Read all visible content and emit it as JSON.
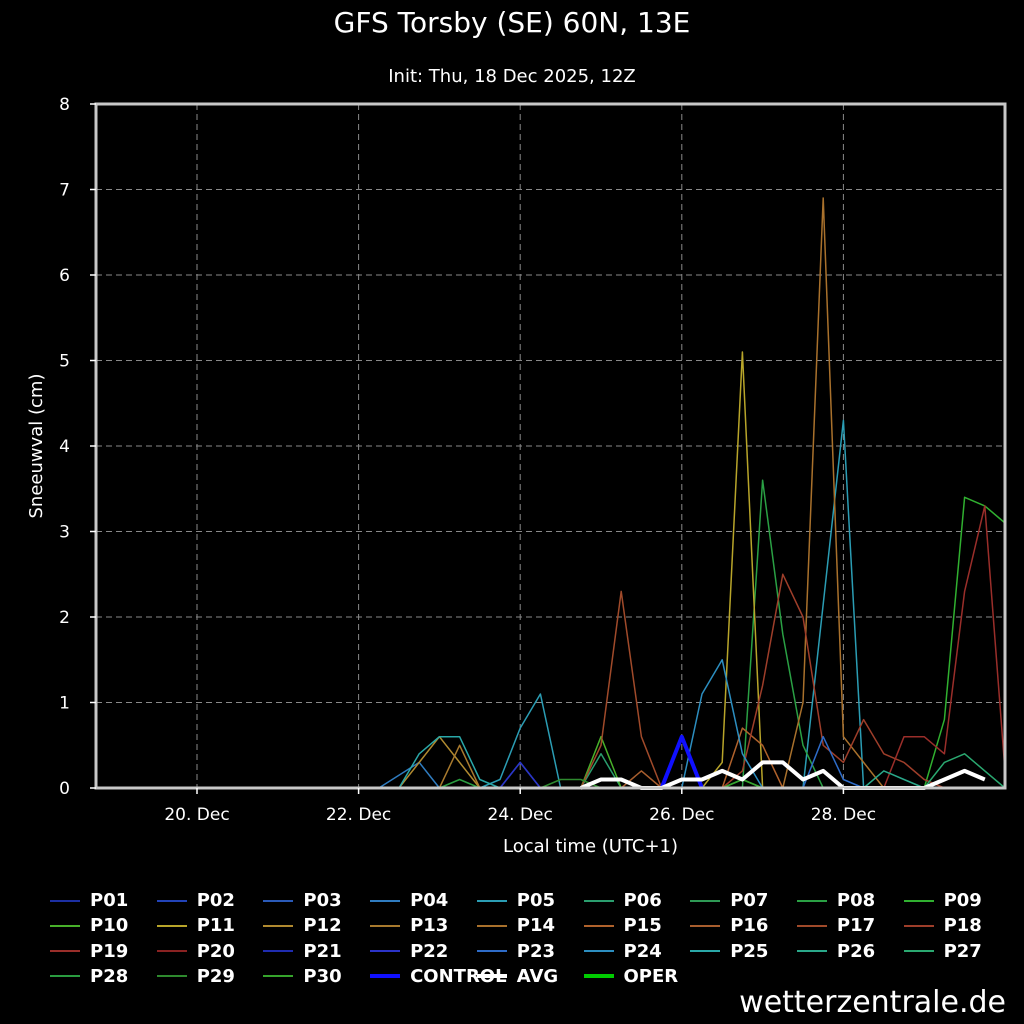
{
  "header": {
    "title": "GFS Torsby (SE) 60N, 13E",
    "subtitle": "Init: Thu, 18 Dec 2025, 12Z"
  },
  "credit": "wetterzentrale.de",
  "chart_data": {
    "type": "line",
    "title": "GFS Torsby (SE) 60N, 13E",
    "subtitle": "Init: Thu, 18 Dec 2025, 12Z",
    "xlabel": "Local time (UTC+1)",
    "ylabel": "Sneeuwval (cm)",
    "x_unit": "days since 18 Dec 2025 13:00",
    "xlim": [
      0,
      11.25
    ],
    "ylim": [
      0,
      8
    ],
    "yticks": [
      0,
      1,
      2,
      3,
      4,
      5,
      6,
      7,
      8
    ],
    "xticks": [
      {
        "x": 1.25,
        "label": "20. Dec"
      },
      {
        "x": 3.25,
        "label": "22. Dec"
      },
      {
        "x": 5.25,
        "label": "24. Dec"
      },
      {
        "x": 7.25,
        "label": "26. Dec"
      },
      {
        "x": 9.25,
        "label": "28. Dec"
      }
    ],
    "grid": true,
    "legend_position": "bottom",
    "series": [
      {
        "name": "P01",
        "color": "#1c2fa3",
        "width": 1.5,
        "points": []
      },
      {
        "name": "P02",
        "color": "#2243b8",
        "width": 1.5,
        "points": []
      },
      {
        "name": "P03",
        "color": "#2a5ab8",
        "width": 1.5,
        "points": [
          [
            5.0,
            0
          ],
          [
            5.25,
            0.3
          ],
          [
            5.5,
            0
          ]
        ]
      },
      {
        "name": "P04",
        "color": "#2f7cc0",
        "width": 1.5,
        "points": [
          [
            3.5,
            0
          ],
          [
            4.0,
            0.3
          ],
          [
            4.25,
            0
          ]
        ]
      },
      {
        "name": "P05",
        "color": "#2b9db4",
        "width": 1.5,
        "points": [
          [
            4.75,
            0
          ],
          [
            5.0,
            0.1
          ],
          [
            5.25,
            0.7
          ],
          [
            5.5,
            1.1
          ],
          [
            5.75,
            0
          ],
          [
            8.75,
            0
          ],
          [
            9.25,
            4.3
          ],
          [
            9.5,
            0
          ]
        ]
      },
      {
        "name": "P06",
        "color": "#2a9e6e",
        "width": 1.5,
        "points": [
          [
            6.0,
            0
          ],
          [
            6.25,
            0.4
          ],
          [
            6.5,
            0
          ]
        ]
      },
      {
        "name": "P07",
        "color": "#2e9a55",
        "width": 1.5,
        "points": [
          [
            7.75,
            0
          ],
          [
            8.0,
            0.1
          ],
          [
            8.25,
            0
          ]
        ]
      },
      {
        "name": "P08",
        "color": "#2aa044",
        "width": 1.5,
        "points": [
          [
            8.0,
            0
          ],
          [
            8.25,
            3.6
          ],
          [
            8.5,
            1.8
          ],
          [
            8.75,
            0.5
          ],
          [
            9.0,
            0
          ]
        ]
      },
      {
        "name": "P09",
        "color": "#30b030",
        "width": 1.5,
        "points": [
          [
            10.25,
            0
          ],
          [
            10.5,
            0.8
          ],
          [
            10.75,
            3.4
          ],
          [
            11.0,
            3.3
          ],
          [
            11.25,
            3.1
          ]
        ]
      },
      {
        "name": "P10",
        "color": "#48b02a",
        "width": 1.5,
        "points": [
          [
            6.0,
            0
          ],
          [
            6.25,
            0.6
          ],
          [
            6.5,
            0
          ]
        ]
      },
      {
        "name": "P11",
        "color": "#b8a52a",
        "width": 1.5,
        "points": [
          [
            7.5,
            0
          ],
          [
            7.75,
            0.3
          ],
          [
            8.0,
            5.1
          ],
          [
            8.25,
            0
          ]
        ]
      },
      {
        "name": "P12",
        "color": "#b08a30",
        "width": 1.5,
        "points": [
          [
            3.75,
            0
          ],
          [
            4.0,
            0.3
          ],
          [
            4.25,
            0.6
          ],
          [
            4.5,
            0.3
          ],
          [
            4.75,
            0
          ]
        ]
      },
      {
        "name": "P13",
        "color": "#a87a2e",
        "width": 1.5,
        "points": [
          [
            4.25,
            0
          ],
          [
            4.5,
            0.5
          ],
          [
            4.75,
            0
          ]
        ]
      },
      {
        "name": "P14",
        "color": "#a9712c",
        "width": 1.5,
        "points": [
          [
            8.5,
            0
          ],
          [
            8.75,
            1.0
          ],
          [
            9.0,
            6.9
          ],
          [
            9.25,
            0.6
          ],
          [
            9.5,
            0.3
          ],
          [
            9.75,
            0
          ]
        ]
      },
      {
        "name": "P15",
        "color": "#b0622c",
        "width": 1.5,
        "points": [
          [
            7.75,
            0
          ],
          [
            8.0,
            0.7
          ],
          [
            8.25,
            0.5
          ],
          [
            8.5,
            0
          ]
        ]
      },
      {
        "name": "P16",
        "color": "#a85e2e",
        "width": 1.5,
        "points": [
          [
            6.5,
            0
          ],
          [
            6.75,
            0.2
          ],
          [
            7.0,
            0
          ]
        ]
      },
      {
        "name": "P17",
        "color": "#a04a2a",
        "width": 1.5,
        "points": [
          [
            6.0,
            0
          ],
          [
            6.25,
            0.5
          ],
          [
            6.5,
            2.3
          ],
          [
            6.75,
            0.6
          ],
          [
            7.0,
            0
          ]
        ]
      },
      {
        "name": "P18",
        "color": "#9e3e2a",
        "width": 1.5,
        "points": [
          [
            7.75,
            0
          ],
          [
            8.0,
            0.2
          ],
          [
            8.25,
            1.2
          ],
          [
            8.5,
            2.5
          ],
          [
            8.75,
            2.0
          ],
          [
            9.0,
            0.5
          ],
          [
            9.25,
            0.3
          ],
          [
            9.5,
            0.8
          ],
          [
            9.75,
            0.4
          ],
          [
            10.0,
            0.3
          ],
          [
            10.25,
            0.1
          ],
          [
            10.5,
            0
          ]
        ]
      },
      {
        "name": "P19",
        "color": "#9a2e2a",
        "width": 1.5,
        "points": [
          [
            9.75,
            0
          ],
          [
            10.0,
            0.6
          ],
          [
            10.25,
            0.6
          ],
          [
            10.5,
            0.4
          ],
          [
            10.75,
            2.3
          ],
          [
            11.0,
            3.3
          ],
          [
            11.25,
            0.2
          ]
        ]
      },
      {
        "name": "P20",
        "color": "#8a2222",
        "width": 1.5,
        "points": []
      },
      {
        "name": "P21",
        "color": "#1f2cb0",
        "width": 1.5,
        "points": []
      },
      {
        "name": "P22",
        "color": "#2b33c8",
        "width": 1.5,
        "points": [
          [
            5.0,
            0
          ],
          [
            5.25,
            0.3
          ],
          [
            5.5,
            0
          ]
        ]
      },
      {
        "name": "P23",
        "color": "#2e6cc8",
        "width": 1.5,
        "points": [
          [
            8.75,
            0
          ],
          [
            9.0,
            0.6
          ],
          [
            9.25,
            0.1
          ],
          [
            9.5,
            0
          ]
        ]
      },
      {
        "name": "P24",
        "color": "#2c8ec0",
        "width": 1.5,
        "points": [
          [
            7.25,
            0
          ],
          [
            7.5,
            1.1
          ],
          [
            7.75,
            1.5
          ],
          [
            8.0,
            0.4
          ],
          [
            8.25,
            0
          ]
        ]
      },
      {
        "name": "P25",
        "color": "#2aa8a8",
        "width": 1.5,
        "points": [
          [
            3.75,
            0
          ],
          [
            4.0,
            0.4
          ],
          [
            4.25,
            0.6
          ],
          [
            4.5,
            0.6
          ],
          [
            4.75,
            0.1
          ],
          [
            5.0,
            0
          ]
        ]
      },
      {
        "name": "P26",
        "color": "#2aa88a",
        "width": 1.5,
        "points": [
          [
            9.5,
            0
          ],
          [
            9.75,
            0.2
          ],
          [
            10.0,
            0.1
          ],
          [
            10.25,
            0
          ]
        ]
      },
      {
        "name": "P27",
        "color": "#2aa870",
        "width": 1.5,
        "points": [
          [
            10.25,
            0
          ],
          [
            10.5,
            0.3
          ],
          [
            10.75,
            0.4
          ],
          [
            11.0,
            0.2
          ],
          [
            11.25,
            0
          ]
        ]
      },
      {
        "name": "P28",
        "color": "#2a9c40",
        "width": 1.5,
        "points": [
          [
            4.25,
            0
          ],
          [
            4.5,
            0.1
          ],
          [
            4.75,
            0
          ]
        ]
      },
      {
        "name": "P29",
        "color": "#2e8a2e",
        "width": 1.5,
        "points": [
          [
            5.5,
            0
          ],
          [
            5.75,
            0.1
          ],
          [
            6.0,
            0.1
          ],
          [
            6.25,
            0
          ]
        ]
      },
      {
        "name": "P30",
        "color": "#36a42c",
        "width": 1.5,
        "points": [
          [
            7.75,
            0
          ],
          [
            8.0,
            0.1
          ],
          [
            8.25,
            0
          ]
        ]
      },
      {
        "name": "CONTROL",
        "color": "#1010ff",
        "width": 4,
        "points": [
          [
            7.0,
            0
          ],
          [
            7.25,
            0.6
          ],
          [
            7.5,
            0
          ]
        ]
      },
      {
        "name": "AVG",
        "color": "#ffffff",
        "width": 4,
        "points": [
          [
            6.0,
            0
          ],
          [
            6.25,
            0.1
          ],
          [
            6.5,
            0.1
          ],
          [
            6.75,
            0
          ],
          [
            7.0,
            0
          ],
          [
            7.25,
            0.1
          ],
          [
            7.5,
            0.1
          ],
          [
            7.75,
            0.2
          ],
          [
            8.0,
            0.1
          ],
          [
            8.25,
            0.3
          ],
          [
            8.5,
            0.3
          ],
          [
            8.75,
            0.1
          ],
          [
            9.0,
            0.2
          ],
          [
            9.25,
            0
          ],
          [
            10.25,
            0
          ],
          [
            10.5,
            0.1
          ],
          [
            10.75,
            0.2
          ],
          [
            11.0,
            0.1
          ]
        ]
      },
      {
        "name": "OPER",
        "color": "#00cc00",
        "width": 4,
        "points": []
      }
    ]
  }
}
